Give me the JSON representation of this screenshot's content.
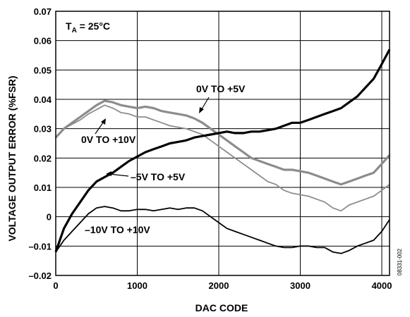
{
  "chart_data": {
    "type": "line",
    "xlabel": "DAC CODE",
    "ylabel": "VOLTAGE OUTPUT ERROR (%FSR)",
    "xlim": [
      0,
      4095
    ],
    "ylim": [
      -0.02,
      0.07
    ],
    "x_ticks": [
      "0",
      "1000",
      "2000",
      "3000",
      "4000"
    ],
    "y_ticks": [
      "–0.02",
      "–0.01",
      "0",
      "0.01",
      "0.02",
      "0.03",
      "0.04",
      "0.05",
      "0.06",
      "0.07"
    ],
    "grid": true,
    "annotation_main": "T",
    "annotation_sub": "A",
    "annotation_rest": " = 25°C",
    "figure_id": "08331-002",
    "series": [
      {
        "name": "0V TO +5V",
        "color": "#8c8c8c",
        "x": [
          0,
          100,
          200,
          300,
          400,
          500,
          600,
          700,
          800,
          900,
          1000,
          1100,
          1200,
          1300,
          1400,
          1500,
          1600,
          1700,
          1800,
          1900,
          2000,
          2100,
          2200,
          2300,
          2400,
          2500,
          2600,
          2700,
          2800,
          2900,
          3000,
          3100,
          3200,
          3300,
          3400,
          3500,
          3600,
          3700,
          3800,
          3900,
          4000,
          4095
        ],
        "values": [
          0.027,
          0.03,
          0.032,
          0.034,
          0.036,
          0.038,
          0.0395,
          0.039,
          0.038,
          0.0375,
          0.037,
          0.0375,
          0.037,
          0.036,
          0.0355,
          0.035,
          0.0345,
          0.0335,
          0.032,
          0.03,
          0.028,
          0.026,
          0.024,
          0.022,
          0.02,
          0.019,
          0.018,
          0.017,
          0.016,
          0.016,
          0.0155,
          0.015,
          0.014,
          0.013,
          0.012,
          0.011,
          0.012,
          0.013,
          0.014,
          0.015,
          0.018,
          0.021
        ]
      },
      {
        "name": "0V TO +10V",
        "color": "#8c8c8c",
        "x": [
          0,
          100,
          200,
          300,
          400,
          500,
          600,
          700,
          800,
          900,
          1000,
          1100,
          1200,
          1300,
          1400,
          1500,
          1600,
          1700,
          1800,
          1900,
          2000,
          2100,
          2200,
          2300,
          2400,
          2500,
          2600,
          2700,
          2800,
          2900,
          3000,
          3100,
          3200,
          3300,
          3400,
          3500,
          3600,
          3700,
          3800,
          3900,
          4000,
          4095
        ],
        "values": [
          0.027,
          0.03,
          0.0315,
          0.033,
          0.035,
          0.0365,
          0.038,
          0.037,
          0.0355,
          0.035,
          0.034,
          0.034,
          0.033,
          0.032,
          0.031,
          0.0305,
          0.03,
          0.029,
          0.028,
          0.026,
          0.024,
          0.022,
          0.02,
          0.018,
          0.016,
          0.014,
          0.012,
          0.011,
          0.009,
          0.008,
          0.0075,
          0.007,
          0.006,
          0.005,
          0.003,
          0.002,
          0.004,
          0.005,
          0.006,
          0.007,
          0.009,
          0.011
        ]
      },
      {
        "name": "–5V TO +5V",
        "color": "#000000",
        "x": [
          0,
          100,
          200,
          300,
          400,
          500,
          600,
          700,
          800,
          900,
          1000,
          1100,
          1200,
          1300,
          1400,
          1500,
          1600,
          1700,
          1800,
          1900,
          2000,
          2100,
          2200,
          2300,
          2400,
          2500,
          2600,
          2700,
          2800,
          2900,
          3000,
          3100,
          3200,
          3300,
          3400,
          3500,
          3600,
          3700,
          3800,
          3900,
          4000,
          4095
        ],
        "values": [
          -0.012,
          -0.004,
          0.001,
          0.005,
          0.009,
          0.012,
          0.0135,
          0.015,
          0.017,
          0.019,
          0.0205,
          0.022,
          0.023,
          0.024,
          0.025,
          0.0255,
          0.026,
          0.027,
          0.0275,
          0.028,
          0.0285,
          0.029,
          0.0285,
          0.0285,
          0.029,
          0.029,
          0.0295,
          0.03,
          0.031,
          0.032,
          0.032,
          0.033,
          0.034,
          0.035,
          0.036,
          0.037,
          0.039,
          0.041,
          0.044,
          0.047,
          0.052,
          0.057
        ]
      },
      {
        "name": "–10V TO +10V",
        "color": "#000000",
        "x": [
          0,
          100,
          200,
          300,
          400,
          500,
          600,
          700,
          800,
          900,
          1000,
          1100,
          1200,
          1300,
          1400,
          1500,
          1600,
          1700,
          1800,
          1900,
          2000,
          2100,
          2200,
          2300,
          2400,
          2500,
          2600,
          2700,
          2800,
          2900,
          3000,
          3100,
          3200,
          3300,
          3400,
          3500,
          3600,
          3700,
          3800,
          3900,
          4000,
          4095
        ],
        "values": [
          -0.012,
          -0.008,
          -0.005,
          -0.002,
          0.001,
          0.003,
          0.0035,
          0.003,
          0.002,
          0.002,
          0.0025,
          0.0025,
          0.002,
          0.0025,
          0.003,
          0.0025,
          0.003,
          0.003,
          0.002,
          0.0,
          -0.002,
          -0.004,
          -0.005,
          -0.006,
          -0.007,
          -0.008,
          -0.009,
          -0.01,
          -0.0105,
          -0.0105,
          -0.01,
          -0.01,
          -0.0105,
          -0.0105,
          -0.012,
          -0.0125,
          -0.0115,
          -0.01,
          -0.009,
          -0.008,
          -0.005,
          -0.001
        ]
      }
    ],
    "labels": [
      {
        "text": "0V TO +5V",
        "series": "0V TO +5V"
      },
      {
        "text": "0V TO +10V",
        "series": "0V TO +10V"
      },
      {
        "text": "–5V TO +5V",
        "series": "–5V TO +5V"
      },
      {
        "text": "–10V TO +10V",
        "series": "–10V TO +10V"
      }
    ]
  }
}
